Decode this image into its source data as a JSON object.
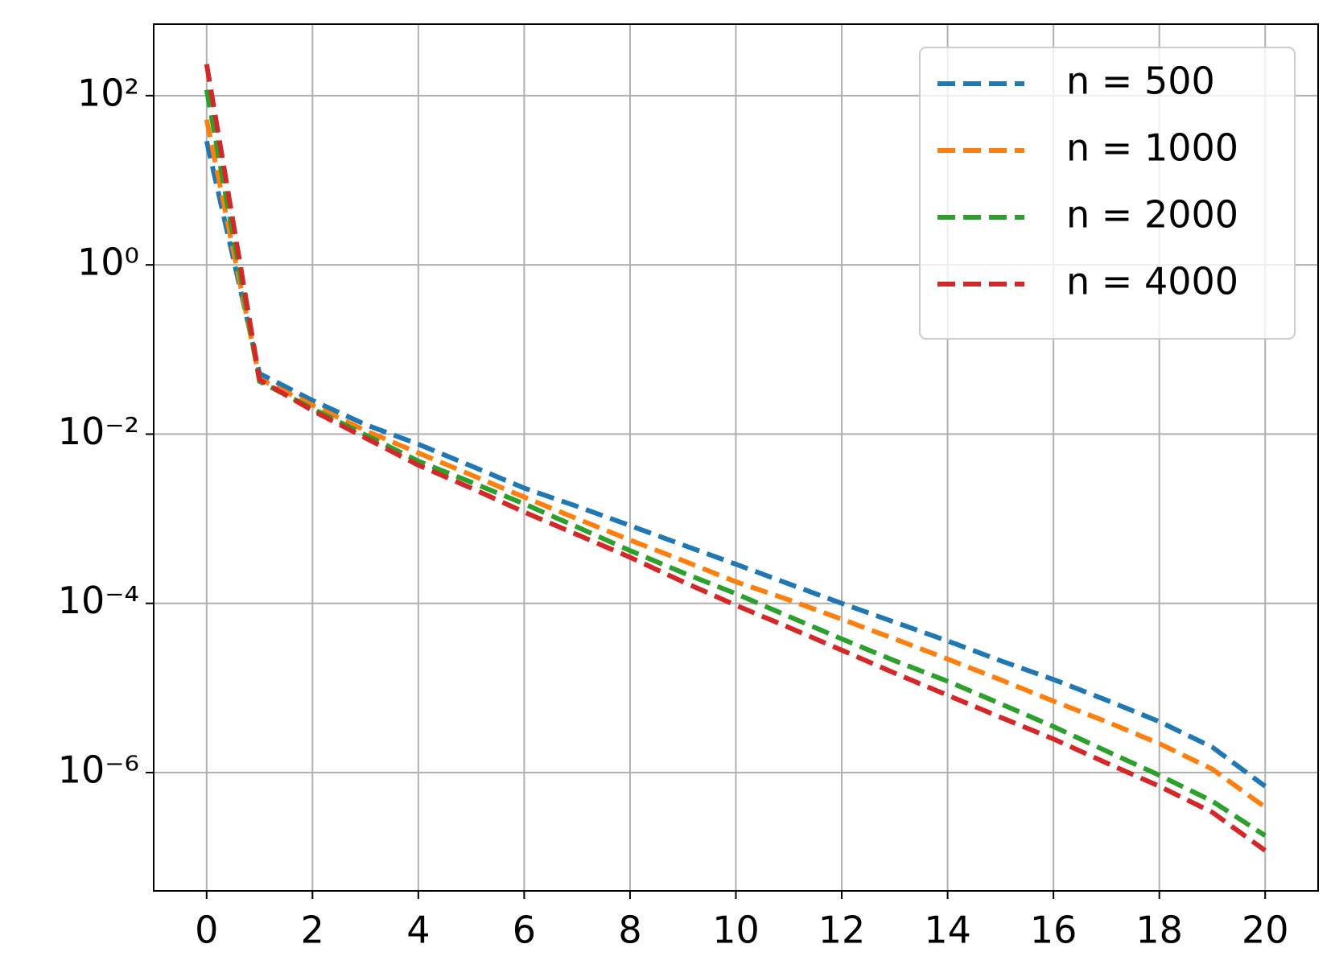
{
  "chart_data": {
    "type": "line",
    "x": [
      0,
      1,
      2,
      3,
      4,
      5,
      6,
      7,
      8,
      9,
      10,
      11,
      12,
      13,
      14,
      15,
      16,
      17,
      18,
      19,
      20
    ],
    "series": [
      {
        "name": "n = 500",
        "color": "#1f77b4",
        "values": [
          29,
          0.052,
          0.025,
          0.013,
          0.0076,
          0.0042,
          0.0023,
          0.0014,
          0.00083,
          0.00049,
          0.00029,
          0.00017,
          0.0001,
          6e-05,
          3.6e-05,
          2.1e-05,
          1.26e-05,
          7.2e-06,
          4e-06,
          2e-06,
          6.9e-07
        ]
      },
      {
        "name": "n = 1000",
        "color": "#ff7f0e",
        "values": [
          52,
          0.045,
          0.022,
          0.011,
          0.006,
          0.0033,
          0.0018,
          0.001,
          0.00056,
          0.00032,
          0.00018,
          0.00011,
          6.5e-05,
          3.8e-05,
          2.2e-05,
          1.25e-05,
          7e-06,
          4e-06,
          2.2e-06,
          1.1e-06,
          3.9e-07
        ]
      },
      {
        "name": "n = 2000",
        "color": "#2ca02c",
        "values": [
          117,
          0.042,
          0.02,
          0.0098,
          0.0048,
          0.0027,
          0.0015,
          0.0008,
          0.00042,
          0.00023,
          0.00013,
          7e-05,
          3.8e-05,
          2.1e-05,
          1.2e-05,
          6.5e-06,
          3.5e-06,
          1.8e-06,
          9.3e-07,
          4.6e-07,
          1.8e-07
        ]
      },
      {
        "name": "n = 4000",
        "color": "#d62728",
        "values": [
          235,
          0.044,
          0.019,
          0.009,
          0.0043,
          0.0023,
          0.0012,
          0.00065,
          0.00035,
          0.00018,
          9.5e-05,
          5.2e-05,
          2.8e-05,
          1.5e-05,
          8.2e-06,
          4.5e-06,
          2.5e-06,
          1.3e-06,
          6.9e-07,
          3.4e-07,
          1.2e-07
        ]
      }
    ],
    "xlim": [
      -1,
      21
    ],
    "xticks": [
      0,
      2,
      4,
      6,
      8,
      10,
      12,
      14,
      16,
      18,
      20
    ],
    "ylim": [
      4e-08,
      700
    ],
    "yticks": [
      {
        "value": 100,
        "label": "10²"
      },
      {
        "value": 1,
        "label": "10⁰"
      },
      {
        "value": 0.01,
        "label": "10⁻²"
      },
      {
        "value": 0.0001,
        "label": "10⁻⁴"
      },
      {
        "value": 1e-06,
        "label": "10⁻⁶"
      }
    ],
    "log_y": true,
    "grid": true,
    "legend": "upper right"
  }
}
